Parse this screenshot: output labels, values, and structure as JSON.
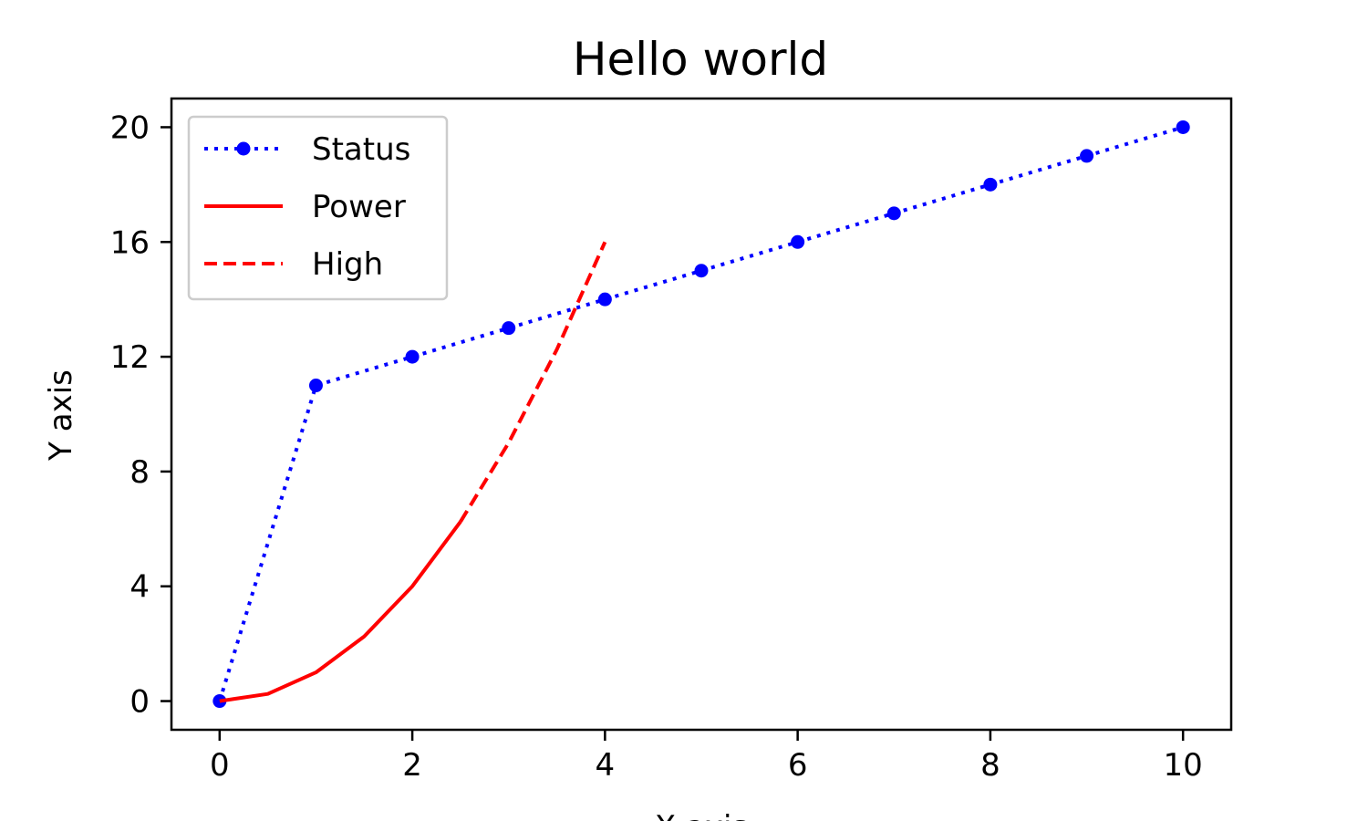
{
  "chart_data": {
    "type": "line",
    "title": "Hello world",
    "xlabel": "X axis",
    "ylabel": "Y axis",
    "xlim": [
      -0.5,
      10.5
    ],
    "ylim": [
      -1,
      21
    ],
    "xticks": [
      0,
      2,
      4,
      6,
      8,
      10
    ],
    "yticks": [
      0,
      4,
      8,
      12,
      16,
      20
    ],
    "grid": false,
    "legend_position": "upper-left",
    "series": [
      {
        "name": "Status",
        "color": "#0000ff",
        "style": "dotted-with-markers",
        "x": [
          0,
          1,
          2,
          3,
          4,
          5,
          6,
          7,
          8,
          9,
          10
        ],
        "y": [
          0,
          11,
          12,
          13,
          14,
          15,
          16,
          17,
          18,
          19,
          20
        ]
      },
      {
        "name": "Power",
        "color": "#ff0000",
        "style": "solid",
        "x": [
          0,
          0.5,
          1,
          1.5,
          2,
          2.5
        ],
        "y": [
          0,
          0.25,
          1,
          2.25,
          4,
          6.25
        ]
      },
      {
        "name": "High",
        "color": "#ff0000",
        "style": "dashed",
        "x": [
          2.5,
          3,
          3.5,
          4
        ],
        "y": [
          6.25,
          9,
          12.25,
          16
        ]
      }
    ]
  }
}
